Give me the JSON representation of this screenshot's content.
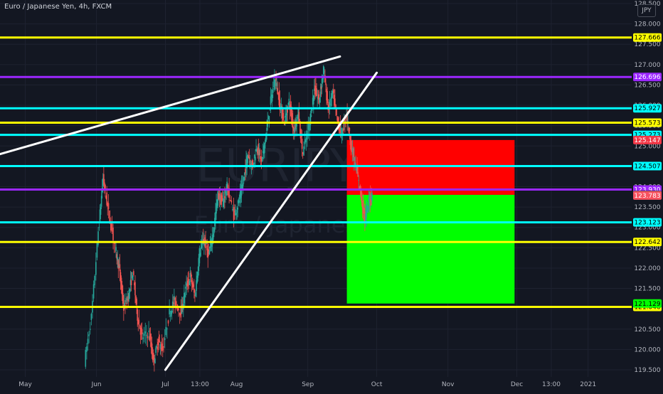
{
  "header": {
    "title": "Euro / Japanese Yen, 4h, FXCM",
    "currency": "JPY"
  },
  "watermark": {
    "symbol": "EURJPY, 4",
    "name": "Euro / Japanese Yen"
  },
  "chart_data": {
    "type": "candlestick",
    "symbol": "EURJPY",
    "timeframe": "4h",
    "ylim": [
      119.5,
      128.5
    ],
    "x_ticks": [
      "May",
      "Jun",
      "Jul",
      "13:00",
      "Aug",
      "Sep",
      "Oct",
      "Nov",
      "Dec",
      "13:00",
      "2021"
    ],
    "y_ticks": [
      "128.500",
      "128.000",
      "127.500",
      "127.000",
      "126.500",
      "126.000",
      "125.500",
      "125.000",
      "124.500",
      "124.000",
      "123.500",
      "123.000",
      "122.500",
      "122.000",
      "121.500",
      "121.000",
      "120.500",
      "120.000",
      "119.500"
    ],
    "horizontal_levels": [
      {
        "label": "127.666",
        "value": 127.666,
        "color": "#ffff00"
      },
      {
        "label": "126.696",
        "value": 126.696,
        "color": "#9c27ff"
      },
      {
        "label": "125.927",
        "value": 125.927,
        "color": "#00ffff"
      },
      {
        "label": "125.573",
        "value": 125.573,
        "color": "#ffff00"
      },
      {
        "label": "125.273",
        "value": 125.273,
        "color": "#00ffff"
      },
      {
        "label": "124.507",
        "value": 124.507,
        "color": "#00ffff"
      },
      {
        "label": "123.930",
        "value": 123.93,
        "color": "#9c27ff"
      },
      {
        "label": "123.123",
        "value": 123.123,
        "color": "#00ffff"
      },
      {
        "label": "122.642",
        "value": 122.642,
        "color": "#ffff00"
      },
      {
        "label": "121.046",
        "value": 121.046,
        "color": "#ffff00"
      }
    ],
    "price_tags": [
      {
        "label": "125.147",
        "value": 125.147,
        "color": "#f23645"
      },
      {
        "label": "123.800",
        "value": 123.8,
        "color": "#4a4e59"
      },
      {
        "label": "123.783",
        "value": 123.783,
        "color": "#f7525f"
      },
      {
        "label": "121.129",
        "value": 121.129,
        "color": "#00ff00"
      }
    ],
    "position_box": {
      "entry": 123.8,
      "stop": 125.147,
      "target": 121.129,
      "start_date": "2020-09-18",
      "end_date": "2020-11-30",
      "stop_color": "#ff0000",
      "target_color": "#00ff00"
    },
    "trendlines": [
      {
        "from": [
          "2020-04-20",
          124.8
        ],
        "to": [
          "2020-09-15",
          127.2
        ],
        "color": "#ffffff"
      },
      {
        "from": [
          "2020-07-01",
          119.5
        ],
        "to": [
          "2020-10-01",
          126.8
        ],
        "color": "#ffffff"
      }
    ],
    "price_path": [
      [
        "2020-05-27",
        119.7
      ],
      [
        "2020-05-30",
        120.8
      ],
      [
        "2020-06-02",
        122.9
      ],
      [
        "2020-06-04",
        124.2
      ],
      [
        "2020-06-06",
        123.5
      ],
      [
        "2020-06-09",
        122.6
      ],
      [
        "2020-06-11",
        122.0
      ],
      [
        "2020-06-13",
        121.0
      ],
      [
        "2020-06-15",
        121.3
      ],
      [
        "2020-06-17",
        121.9
      ],
      [
        "2020-06-19",
        120.8
      ],
      [
        "2020-06-21",
        120.3
      ],
      [
        "2020-06-24",
        120.4
      ],
      [
        "2020-06-26",
        119.7
      ],
      [
        "2020-06-28",
        120.2
      ],
      [
        "2020-06-30",
        120.0
      ],
      [
        "2020-07-03",
        120.9
      ],
      [
        "2020-07-05",
        121.2
      ],
      [
        "2020-07-08",
        120.9
      ],
      [
        "2020-07-10",
        121.5
      ],
      [
        "2020-07-12",
        121.8
      ],
      [
        "2020-07-14",
        121.3
      ],
      [
        "2020-07-16",
        122.4
      ],
      [
        "2020-07-18",
        122.7
      ],
      [
        "2020-07-20",
        122.3
      ],
      [
        "2020-07-22",
        122.9
      ],
      [
        "2020-07-24",
        123.8
      ],
      [
        "2020-07-26",
        123.6
      ],
      [
        "2020-07-28",
        124.0
      ],
      [
        "2020-07-31",
        123.3
      ],
      [
        "2020-08-02",
        123.6
      ],
      [
        "2020-08-04",
        124.1
      ],
      [
        "2020-08-06",
        124.8
      ],
      [
        "2020-08-08",
        124.5
      ],
      [
        "2020-08-10",
        125.0
      ],
      [
        "2020-08-12",
        124.6
      ],
      [
        "2020-08-14",
        125.3
      ],
      [
        "2020-08-16",
        126.1
      ],
      [
        "2020-08-18",
        126.7
      ],
      [
        "2020-08-20",
        126.0
      ],
      [
        "2020-08-22",
        125.6
      ],
      [
        "2020-08-24",
        126.1
      ],
      [
        "2020-08-26",
        125.4
      ],
      [
        "2020-08-28",
        125.8
      ],
      [
        "2020-08-30",
        124.8
      ],
      [
        "2020-09-02",
        125.6
      ],
      [
        "2020-09-04",
        126.4
      ],
      [
        "2020-09-06",
        126.1
      ],
      [
        "2020-09-08",
        126.9
      ],
      [
        "2020-09-10",
        125.9
      ],
      [
        "2020-09-12",
        126.3
      ],
      [
        "2020-09-14",
        125.6
      ],
      [
        "2020-09-16",
        125.3
      ],
      [
        "2020-09-18",
        125.8
      ],
      [
        "2020-09-20",
        125.0
      ],
      [
        "2020-09-22",
        124.5
      ],
      [
        "2020-09-24",
        123.9
      ],
      [
        "2020-09-26",
        123.2
      ],
      [
        "2020-09-28",
        123.7
      ],
      [
        "2020-09-29",
        123.78
      ]
    ]
  }
}
